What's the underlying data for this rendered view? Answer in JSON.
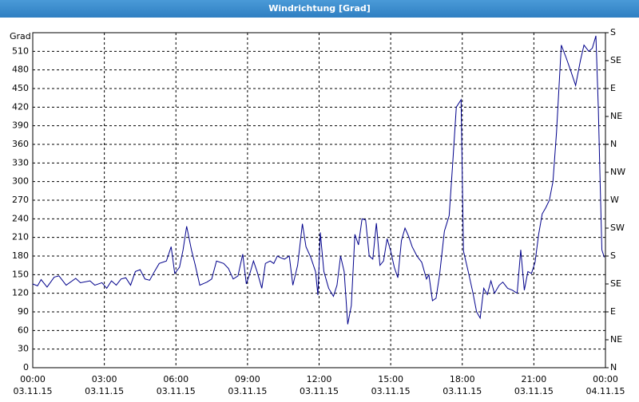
{
  "chart_data": {
    "type": "line",
    "title": "Windrichtung [Grad]",
    "y_label": "Grad",
    "xlim": [
      0,
      24
    ],
    "xticks": [
      {
        "value": 0,
        "label": "00:00"
      },
      {
        "value": 3,
        "label": "03:00"
      },
      {
        "value": 6,
        "label": "06:00"
      },
      {
        "value": 9,
        "label": "09:00"
      },
      {
        "value": 12,
        "label": "12:00"
      },
      {
        "value": 15,
        "label": "15:00"
      },
      {
        "value": 18,
        "label": "18:00"
      },
      {
        "value": 21,
        "label": "21:00"
      },
      {
        "value": 24,
        "label": "00:00"
      }
    ],
    "xtick_dates": [
      "03.11.15",
      "03.11.15",
      "03.11.15",
      "03.11.15",
      "03.11.15",
      "03.11.15",
      "03.11.15",
      "03.11.15",
      "04.11.15"
    ],
    "ylim": [
      0,
      540
    ],
    "yticks": [
      0,
      30,
      60,
      90,
      120,
      150,
      180,
      210,
      240,
      270,
      300,
      330,
      360,
      390,
      420,
      450,
      480,
      510
    ],
    "y2lim": [
      0,
      540
    ],
    "y2ticks": [
      {
        "value": 0,
        "label": "N"
      },
      {
        "value": 45,
        "label": "NE"
      },
      {
        "value": 90,
        "label": "E"
      },
      {
        "value": 135,
        "label": "SE"
      },
      {
        "value": 180,
        "label": "S"
      },
      {
        "value": 225,
        "label": "SW"
      },
      {
        "value": 270,
        "label": "W"
      },
      {
        "value": 315,
        "label": "NW"
      },
      {
        "value": 360,
        "label": "N"
      },
      {
        "value": 405,
        "label": "NE"
      },
      {
        "value": 450,
        "label": "E"
      },
      {
        "value": 495,
        "label": "SE"
      },
      {
        "value": 540,
        "label": "S"
      }
    ],
    "grid": true,
    "series": [
      {
        "color": "#00008b",
        "x": [
          0.0,
          0.2,
          0.35,
          0.6,
          0.9,
          1.1,
          1.4,
          1.8,
          2.0,
          2.4,
          2.6,
          2.9,
          3.1,
          3.3,
          3.5,
          3.7,
          3.9,
          4.1,
          4.3,
          4.5,
          4.7,
          4.9,
          5.1,
          5.3,
          5.6,
          5.8,
          5.95,
          6.15,
          6.3,
          6.45,
          6.65,
          6.8,
          7.0,
          7.3,
          7.5,
          7.7,
          8.0,
          8.2,
          8.4,
          8.6,
          8.8,
          8.95,
          9.1,
          9.25,
          9.4,
          9.6,
          9.75,
          9.95,
          10.1,
          10.25,
          10.4,
          10.55,
          10.75,
          10.9,
          11.1,
          11.3,
          11.45,
          11.65,
          11.85,
          11.95,
          12.05,
          12.2,
          12.4,
          12.6,
          12.75,
          12.9,
          13.05,
          13.2,
          13.35,
          13.5,
          13.65,
          13.8,
          13.95,
          14.1,
          14.25,
          14.4,
          14.55,
          14.7,
          14.85,
          15.0,
          15.15,
          15.3,
          15.45,
          15.6,
          15.75,
          15.9,
          16.1,
          16.3,
          16.5,
          16.6,
          16.75,
          16.9,
          17.05,
          17.25,
          17.45,
          17.6,
          17.75,
          17.95,
          18.05,
          18.25,
          18.45,
          18.6,
          18.75,
          18.9,
          19.05,
          19.2,
          19.35,
          19.55,
          19.7,
          19.9,
          20.1,
          20.3,
          20.45,
          20.6,
          20.75,
          20.9,
          21.05,
          21.2,
          21.35,
          21.5,
          21.65,
          21.8,
          21.95,
          22.15,
          22.35,
          22.55,
          22.75,
          22.95,
          23.1,
          23.3,
          23.45,
          23.6,
          23.7,
          23.78,
          23.85,
          23.95
        ],
        "values": [
          135,
          132,
          142,
          130,
          146,
          148,
          133,
          144,
          137,
          140,
          133,
          137,
          128,
          140,
          133,
          143,
          145,
          133,
          155,
          158,
          143,
          141,
          155,
          168,
          172,
          195,
          152,
          162,
          190,
          228,
          190,
          167,
          133,
          138,
          143,
          172,
          168,
          160,
          143,
          148,
          183,
          135,
          152,
          172,
          155,
          128,
          168,
          172,
          168,
          180,
          177,
          175,
          180,
          133,
          165,
          232,
          195,
          178,
          155,
          117,
          218,
          155,
          128,
          115,
          133,
          180,
          155,
          70,
          100,
          215,
          198,
          240,
          238,
          180,
          175,
          233,
          165,
          172,
          208,
          188,
          162,
          145,
          205,
          225,
          212,
          195,
          180,
          170,
          143,
          150,
          108,
          112,
          150,
          220,
          245,
          330,
          420,
          432,
          188,
          155,
          120,
          90,
          80,
          128,
          118,
          140,
          120,
          133,
          138,
          128,
          125,
          120,
          190,
          125,
          155,
          152,
          170,
          215,
          248,
          258,
          270,
          300,
          380,
          520,
          500,
          478,
          455,
          495,
          520,
          510,
          515,
          535,
          420,
          295,
          190,
          178
        ]
      }
    ]
  }
}
